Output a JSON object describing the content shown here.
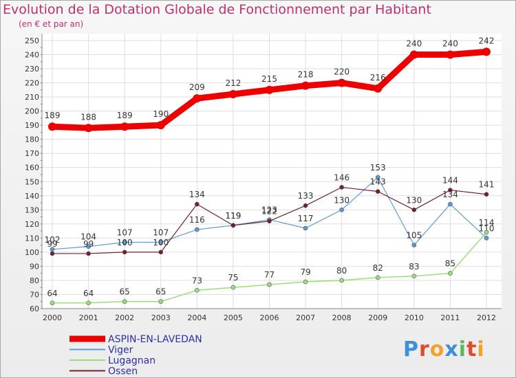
{
  "chart_data": {
    "type": "line",
    "title": "Evolution de la Dotation Globale de Fonctionnement par Habitant",
    "subtitle": "(en € et par an)",
    "x": [
      "2000",
      "2001",
      "2002",
      "2003",
      "2004",
      "2005",
      "2006",
      "2007",
      "2008",
      "2009",
      "2010",
      "2011",
      "2012"
    ],
    "ylim": [
      60,
      250
    ],
    "yticks": [
      60,
      70,
      80,
      90,
      100,
      110,
      120,
      130,
      140,
      150,
      160,
      170,
      180,
      190,
      200,
      210,
      220,
      230,
      240,
      250
    ],
    "grid": true,
    "legend_position": "bottom-left",
    "series": [
      {
        "name": "ASPIN-EN-LAVEDAN",
        "color": "#ee0000",
        "values": [
          189,
          188,
          189,
          190,
          209,
          212,
          215,
          218,
          220,
          216,
          240,
          240,
          242
        ]
      },
      {
        "name": "Viger",
        "color": "#5b9bd5",
        "values": [
          102,
          104,
          107,
          107,
          116,
          119,
          123,
          117,
          130,
          153,
          105,
          134,
          110
        ]
      },
      {
        "name": "Lugagnan",
        "color": "#99e07a",
        "values": [
          64,
          64,
          65,
          65,
          73,
          75,
          77,
          79,
          80,
          82,
          83,
          85,
          114
        ]
      },
      {
        "name": "Ossen",
        "color": "#702030",
        "values": [
          99,
          99,
          100,
          100,
          134,
          119,
          122,
          133,
          146,
          143,
          130,
          144,
          141
        ]
      }
    ]
  },
  "logo": {
    "text": "Proxiti",
    "letters": [
      "P",
      "r",
      "o",
      "x",
      "i",
      "t",
      "i"
    ],
    "colors": [
      "#3d8fd8",
      "#e3492b",
      "#f2a12a",
      "#3d8fd8",
      "#5cb85c",
      "#e3492b",
      "#f2a12a"
    ]
  }
}
